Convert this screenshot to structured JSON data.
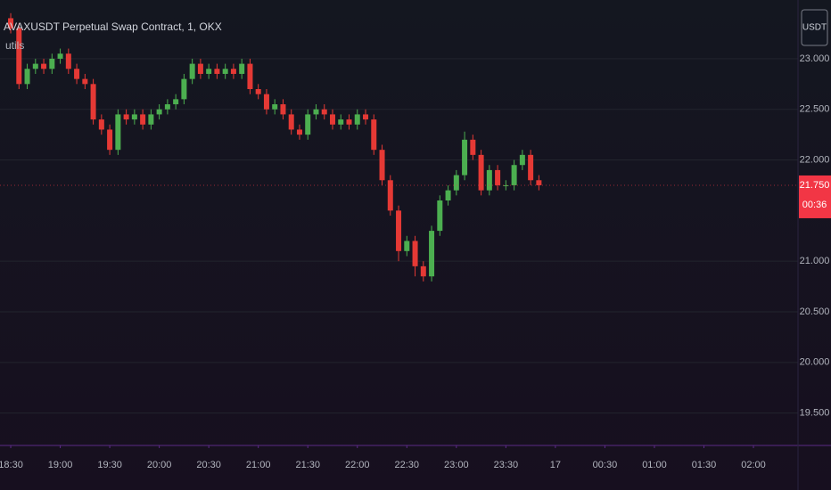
{
  "chart_data": {
    "type": "candlestick",
    "title": "AVAXUSDT Perpetual Swap Contract, 1, OKX",
    "subtitle": "utils",
    "currency_button": "USDT",
    "x": [
      1110,
      1115,
      1120,
      1125,
      1130,
      1135,
      1140,
      1145,
      1150,
      1155,
      1160,
      1165,
      1170,
      1175,
      1180,
      1185,
      1190,
      1195,
      1200,
      1205,
      1210,
      1215,
      1220,
      1225,
      1230,
      1235,
      1240,
      1245,
      1250,
      1255,
      1260,
      1265,
      1270,
      1275,
      1280,
      1285,
      1290,
      1295,
      1300,
      1305,
      1310,
      1315,
      1320,
      1325,
      1330,
      1335,
      1340,
      1345,
      1350,
      1355,
      1360,
      1365,
      1370,
      1375,
      1380,
      1385,
      1390,
      1395,
      1400,
      1405,
      1410,
      1415,
      1420,
      1425,
      1430
    ],
    "series": [
      {
        "name": "AVAXUSDT",
        "open": [
          23.4,
          23.3,
          22.75,
          22.9,
          22.95,
          22.9,
          23.0,
          23.05,
          22.9,
          22.8,
          22.75,
          22.4,
          22.3,
          22.1,
          22.45,
          22.4,
          22.45,
          22.35,
          22.45,
          22.5,
          22.55,
          22.6,
          22.8,
          22.95,
          22.85,
          22.9,
          22.85,
          22.9,
          22.85,
          22.95,
          22.7,
          22.65,
          22.5,
          22.55,
          22.45,
          22.3,
          22.25,
          22.45,
          22.5,
          22.45,
          22.35,
          22.4,
          22.35,
          22.45,
          22.4,
          22.1,
          21.8,
          21.5,
          21.1,
          21.2,
          20.95,
          20.85,
          21.3,
          21.6,
          21.7,
          21.85,
          22.2,
          22.05,
          21.7,
          21.9,
          21.75,
          21.75,
          21.95,
          22.05,
          21.8
        ],
        "high": [
          23.45,
          23.35,
          22.95,
          23.0,
          23.0,
          23.05,
          23.1,
          23.1,
          22.95,
          22.85,
          22.8,
          22.45,
          22.35,
          22.5,
          22.5,
          22.5,
          22.5,
          22.5,
          22.55,
          22.6,
          22.65,
          22.85,
          23.0,
          23.0,
          22.95,
          22.95,
          22.95,
          22.95,
          23.0,
          23.0,
          22.75,
          22.7,
          22.6,
          22.6,
          22.5,
          22.35,
          22.5,
          22.55,
          22.55,
          22.5,
          22.45,
          22.45,
          22.5,
          22.5,
          22.45,
          22.15,
          21.85,
          21.55,
          21.25,
          21.25,
          21.0,
          21.35,
          21.65,
          21.75,
          21.9,
          22.28,
          22.25,
          22.1,
          21.95,
          21.95,
          21.8,
          22.0,
          22.1,
          22.1,
          21.85
        ],
        "low": [
          23.25,
          22.7,
          22.7,
          22.85,
          22.85,
          22.85,
          22.95,
          22.85,
          22.75,
          22.7,
          22.35,
          22.25,
          22.05,
          22.05,
          22.35,
          22.35,
          22.3,
          22.3,
          22.4,
          22.45,
          22.5,
          22.55,
          22.75,
          22.8,
          22.8,
          22.8,
          22.8,
          22.8,
          22.8,
          22.65,
          22.6,
          22.45,
          22.45,
          22.4,
          22.25,
          22.2,
          22.2,
          22.4,
          22.4,
          22.3,
          22.3,
          22.3,
          22.3,
          22.35,
          22.05,
          21.75,
          21.45,
          21.0,
          21.05,
          20.85,
          20.8,
          20.8,
          21.25,
          21.55,
          21.65,
          21.8,
          22.0,
          21.65,
          21.65,
          21.7,
          21.7,
          21.7,
          21.9,
          21.75,
          21.7
        ],
        "close": [
          23.3,
          22.75,
          22.9,
          22.95,
          22.9,
          23.0,
          23.05,
          22.9,
          22.8,
          22.75,
          22.4,
          22.3,
          22.1,
          22.45,
          22.4,
          22.45,
          22.35,
          22.45,
          22.5,
          22.55,
          22.6,
          22.8,
          22.95,
          22.85,
          22.9,
          22.85,
          22.9,
          22.85,
          22.95,
          22.7,
          22.65,
          22.5,
          22.55,
          22.45,
          22.3,
          22.25,
          22.45,
          22.5,
          22.45,
          22.35,
          22.4,
          22.35,
          22.45,
          22.4,
          22.1,
          21.8,
          21.5,
          21.1,
          21.2,
          20.95,
          20.85,
          21.3,
          21.6,
          21.7,
          21.85,
          22.2,
          22.05,
          21.7,
          21.9,
          21.75,
          21.75,
          21.95,
          22.05,
          21.8,
          21.75
        ]
      }
    ],
    "up_color": "#4caf50",
    "down_color": "#e53935",
    "xlim": [
      1103.5,
      1587
    ],
    "xticks": [
      {
        "value": 1110,
        "label": "18:30"
      },
      {
        "value": 1140,
        "label": "19:00"
      },
      {
        "value": 1170,
        "label": "19:30"
      },
      {
        "value": 1200,
        "label": "20:00"
      },
      {
        "value": 1230,
        "label": "20:30"
      },
      {
        "value": 1260,
        "label": "21:00"
      },
      {
        "value": 1290,
        "label": "21:30"
      },
      {
        "value": 1320,
        "label": "22:00"
      },
      {
        "value": 1350,
        "label": "22:30"
      },
      {
        "value": 1380,
        "label": "23:00"
      },
      {
        "value": 1410,
        "label": "23:30"
      },
      {
        "value": 1440,
        "label": "17"
      },
      {
        "value": 1470,
        "label": "00:30"
      },
      {
        "value": 1500,
        "label": "01:00"
      },
      {
        "value": 1530,
        "label": "01:30"
      },
      {
        "value": 1560,
        "label": "02:00"
      }
    ],
    "ylim": [
      19.18,
      23.58
    ],
    "yticks": [
      {
        "value": 19.5,
        "label": "19.500"
      },
      {
        "value": 20,
        "label": "20.000"
      },
      {
        "value": 20.5,
        "label": "20.500"
      },
      {
        "value": 21,
        "label": "21.000"
      },
      {
        "value": 22,
        "label": "22.000"
      },
      {
        "value": 22.5,
        "label": "22.500"
      },
      {
        "value": 23,
        "label": "23.000"
      }
    ],
    "grid": true,
    "last_price": {
      "value": 21.75,
      "label": "21.750"
    },
    "countdown": "00:36",
    "price_label_color": "#f23645"
  }
}
